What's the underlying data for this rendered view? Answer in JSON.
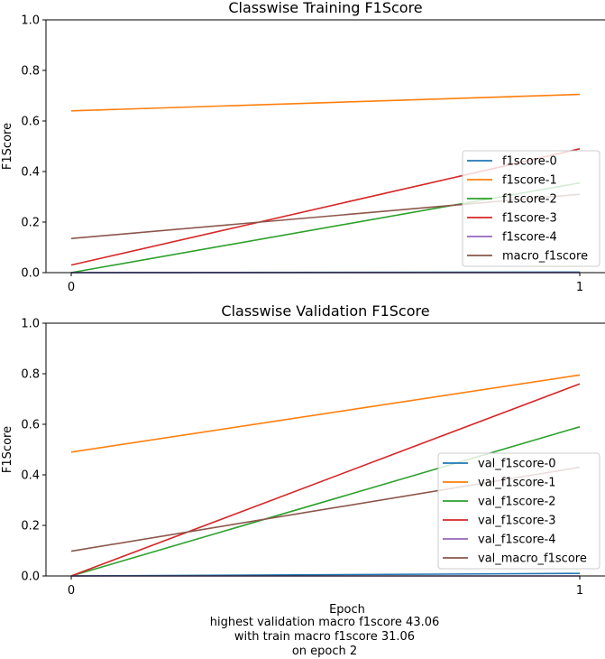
{
  "chart_data": [
    {
      "type": "line",
      "title": "Classwise Training F1Score",
      "xlabel": "",
      "ylabel": "F1Score",
      "x": [
        0,
        1
      ],
      "xticks": [
        "0",
        "1"
      ],
      "ylim": [
        0,
        1.0
      ],
      "yticks": [
        "0.0",
        "0.2",
        "0.4",
        "0.6",
        "0.8",
        "1.0"
      ],
      "grid": false,
      "legend_position": "lower-right",
      "series": [
        {
          "name": "f1score-0",
          "color": "#1f77b4",
          "values": [
            0.0,
            0.002
          ]
        },
        {
          "name": "f1score-1",
          "color": "#ff7f0e",
          "values": [
            0.64,
            0.705
          ]
        },
        {
          "name": "f1score-2",
          "color": "#2ca02c",
          "values": [
            0.0,
            0.355
          ]
        },
        {
          "name": "f1score-3",
          "color": "#d62728",
          "values": [
            0.03,
            0.49
          ]
        },
        {
          "name": "f1score-4",
          "color": "#9467bd",
          "values": [
            0.0,
            0.0
          ]
        },
        {
          "name": "macro_f1score",
          "color": "#8c564b",
          "values": [
            0.135,
            0.31
          ]
        }
      ]
    },
    {
      "type": "line",
      "title": "Classwise Validation F1Score",
      "xlabel": "Epoch",
      "ylabel": "F1Score",
      "x": [
        0,
        1
      ],
      "xticks": [
        "0",
        "1"
      ],
      "ylim": [
        0,
        1.0
      ],
      "yticks": [
        "0.0",
        "0.2",
        "0.4",
        "0.6",
        "0.8",
        "1.0"
      ],
      "grid": false,
      "legend_position": "lower-right",
      "series": [
        {
          "name": "val_f1score-0",
          "color": "#1f77b4",
          "values": [
            0.0,
            0.01
          ]
        },
        {
          "name": "val_f1score-1",
          "color": "#ff7f0e",
          "values": [
            0.49,
            0.795
          ]
        },
        {
          "name": "val_f1score-2",
          "color": "#2ca02c",
          "values": [
            0.0,
            0.59
          ]
        },
        {
          "name": "val_f1score-3",
          "color": "#d62728",
          "values": [
            0.0,
            0.76
          ]
        },
        {
          "name": "val_f1score-4",
          "color": "#9467bd",
          "values": [
            0.0,
            0.0
          ]
        },
        {
          "name": "val_macro_f1score",
          "color": "#8c564b",
          "values": [
            0.098,
            0.43
          ]
        }
      ]
    }
  ],
  "caption": {
    "line1": "highest validation macro f1score 43.06",
    "line2": "with train macro f1score 31.06",
    "line3": "on epoch 2"
  }
}
